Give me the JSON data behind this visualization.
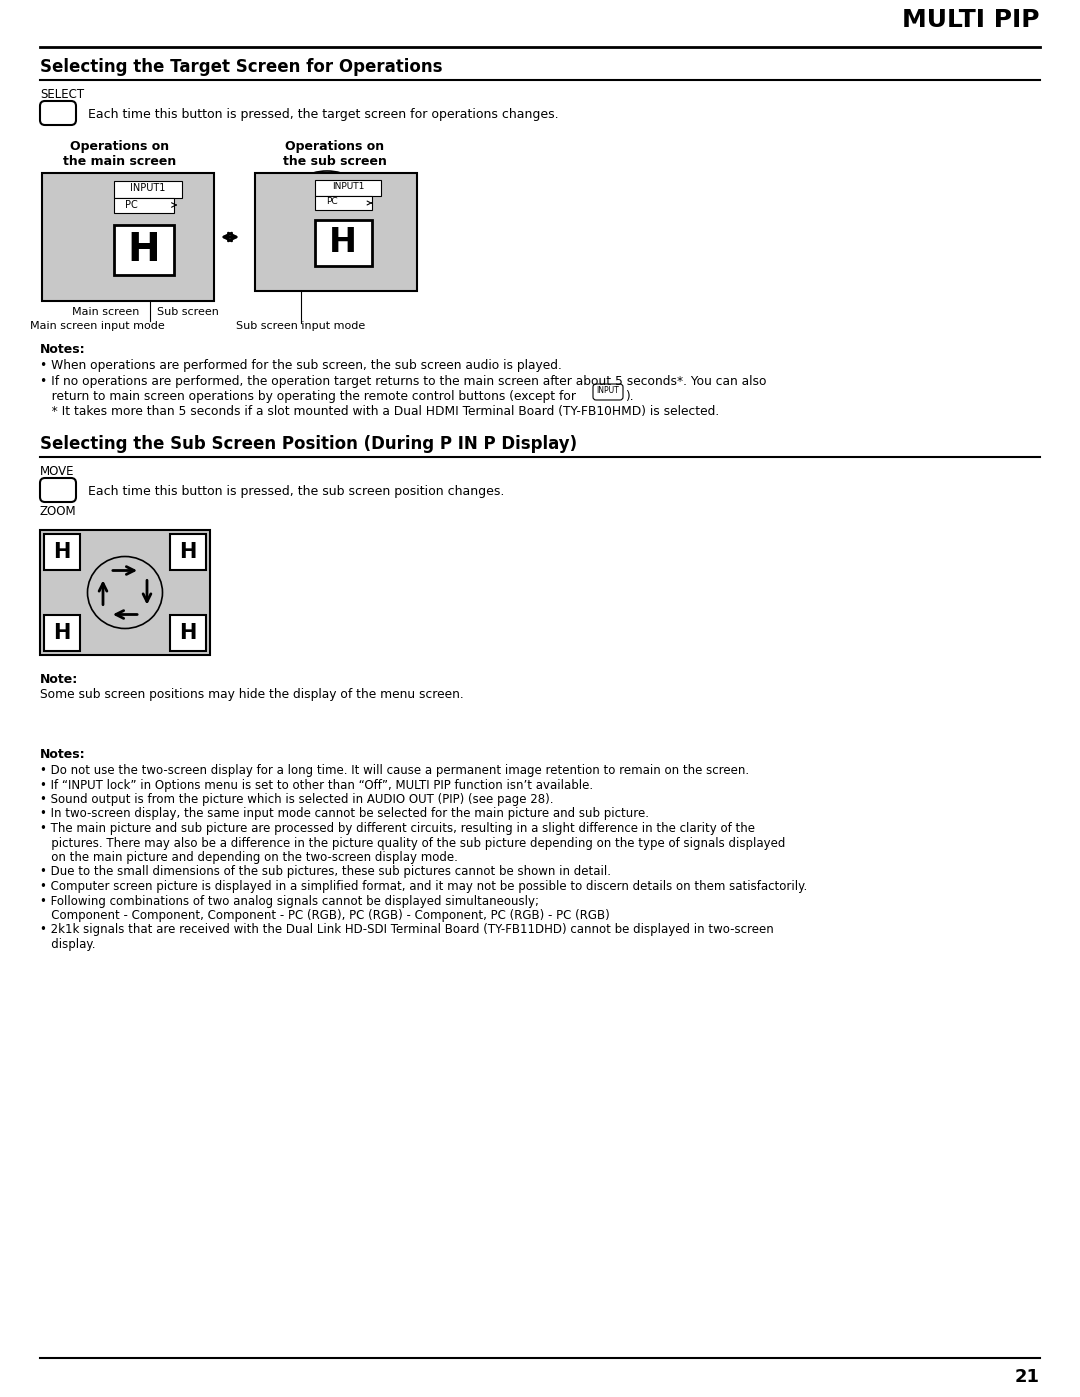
{
  "page_number": "21",
  "header_title": "MULTI PIP",
  "section1_title": "Selecting the Target Screen for Operations",
  "select_label": "SELECT",
  "select_text": "Each time this button is pressed, the target screen for operations changes.",
  "op_main_title": "Operations on\nthe main screen",
  "op_sub_title": "Operations on\nthe sub screen",
  "main_screen_label": "Main screen",
  "sub_screen_label": "Sub screen",
  "main_input_label": "Main screen input mode",
  "sub_input_label": "Sub screen input mode",
  "notes1_title": "Notes:",
  "note1_1": "• When operations are performed for the sub screen, the sub screen audio is played.",
  "note1_2a": "• If no operations are performed, the operation target returns to the main screen after about 5 seconds*. You can also",
  "note1_2b": "   return to main screen operations by operating the remote control buttons (except for",
  "note1_2c": ").",
  "note1_3": "   * It takes more than 5 seconds if a slot mounted with a Dual HDMI Terminal Board (TY-FB10HMD) is selected.",
  "section2_title": "Selecting the Sub Screen Position (During P IN P Display)",
  "move_label": "MOVE",
  "zoom_label": "ZOOM",
  "move_text": "Each time this button is pressed, the sub screen position changes.",
  "note2_title": "Note:",
  "note2_1": "Some sub screen positions may hide the display of the menu screen.",
  "notes3_title": "Notes:",
  "notes3_list": [
    "• Do not use the two-screen display for a long time. It will cause a permanent image retention to remain on the screen.",
    "• If “INPUT lock” in Options menu is set to other than “Off”, MULTI PIP function isn’t available.",
    "• Sound output is from the picture which is selected in AUDIO OUT (PIP) (see page 28).",
    "• In two-screen display, the same input mode cannot be selected for the main picture and sub picture.",
    "• The main picture and sub picture are processed by different circuits, resulting in a slight difference in the clarity of the",
    "   pictures. There may also be a difference in the picture quality of the sub picture depending on the type of signals displayed",
    "   on the main picture and depending on the two-screen display mode.",
    "• Due to the small dimensions of the sub pictures, these sub pictures cannot be shown in detail.",
    "• Computer screen picture is displayed in a simplified format, and it may not be possible to discern details on them satisfactorily.",
    "• Following combinations of two analog signals cannot be displayed simultaneously;",
    "   Component - Component, Component - PC (RGB), PC (RGB) - Component, PC (RGB) - PC (RGB)",
    "• 2k1k signals that are received with the Dual Link HD-SDI Terminal Board (TY-FB11DHD) cannot be displayed in two-screen",
    "   display."
  ],
  "bg_color": "#ffffff",
  "text_color": "#000000",
  "screen_bg": "#c8c8c8"
}
